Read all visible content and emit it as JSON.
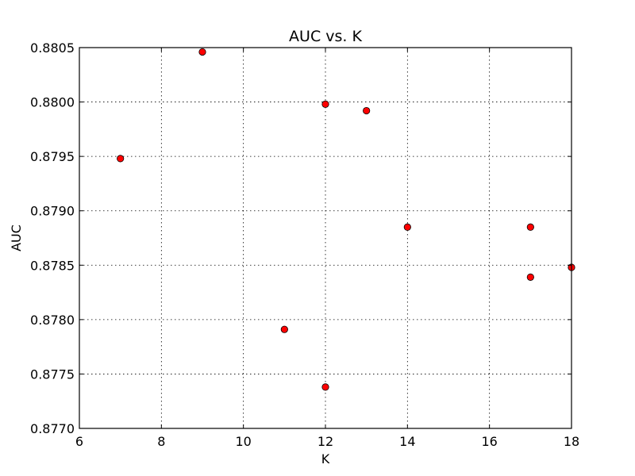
{
  "chart_data": {
    "type": "scatter",
    "title": "AUC vs. K",
    "xlabel": "K",
    "ylabel": "AUC",
    "xlim": [
      6,
      18
    ],
    "ylim": [
      0.877,
      0.8805
    ],
    "xticks": [
      6,
      8,
      10,
      12,
      14,
      16,
      18
    ],
    "yticks": [
      0.877,
      0.8775,
      0.878,
      0.8785,
      0.879,
      0.8795,
      0.88,
      0.8805
    ],
    "xtick_labels": [
      "6",
      "8",
      "10",
      "12",
      "14",
      "16",
      "18"
    ],
    "ytick_labels": [
      "0.8770",
      "0.8775",
      "0.8780",
      "0.8785",
      "0.8790",
      "0.8795",
      "0.8800",
      "0.8805"
    ],
    "grid": true,
    "marker_color": "#ff0000",
    "marker_edge_color": "#000000",
    "points": [
      {
        "x": 7,
        "y": 0.87948
      },
      {
        "x": 9,
        "y": 0.88046
      },
      {
        "x": 11,
        "y": 0.87791
      },
      {
        "x": 12,
        "y": 0.87998
      },
      {
        "x": 12,
        "y": 0.87738
      },
      {
        "x": 13,
        "y": 0.87992
      },
      {
        "x": 14,
        "y": 0.87885
      },
      {
        "x": 17,
        "y": 0.87885
      },
      {
        "x": 17,
        "y": 0.87839
      },
      {
        "x": 18,
        "y": 0.87848
      }
    ]
  }
}
